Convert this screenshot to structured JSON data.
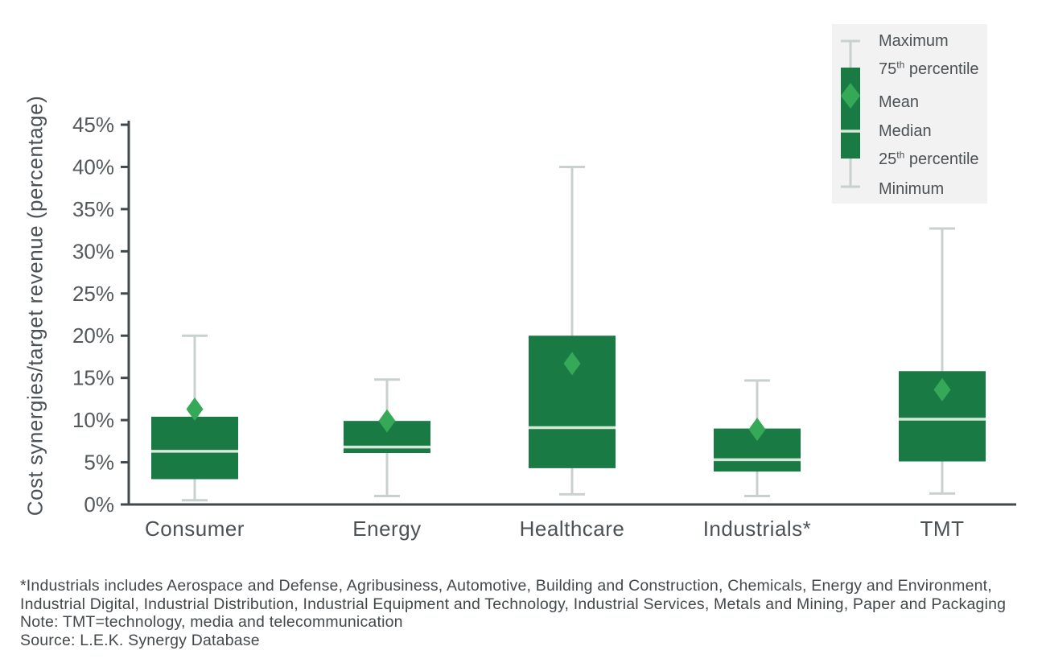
{
  "chart_data": {
    "type": "box",
    "title": "",
    "ylabel": "Cost synergies/target revenue (percentage)",
    "xlabel": "",
    "ylim": [
      0,
      45
    ],
    "ytick_step": 5,
    "ytick_suffix": "%",
    "grid": false,
    "legend_position": "top-right",
    "categories": [
      "Consumer",
      "Energy",
      "Healthcare",
      "Industrials*",
      "TMT"
    ],
    "series": [
      {
        "category": "Consumer",
        "minimum": 0.5,
        "p25": 3.0,
        "median": 6.3,
        "mean": 11.3,
        "p75": 10.4,
        "maximum": 20.0
      },
      {
        "category": "Energy",
        "minimum": 1.0,
        "p25": 6.1,
        "median": 6.8,
        "mean": 9.9,
        "p75": 9.9,
        "maximum": 14.8
      },
      {
        "category": "Healthcare",
        "minimum": 1.2,
        "p25": 4.3,
        "median": 9.1,
        "mean": 16.7,
        "p75": 20.0,
        "maximum": 40.0
      },
      {
        "category": "Industrials*",
        "minimum": 1.0,
        "p25": 3.9,
        "median": 5.3,
        "mean": 8.9,
        "p75": 9.0,
        "maximum": 14.7
      },
      {
        "category": "TMT",
        "minimum": 1.3,
        "p25": 5.1,
        "median": 10.1,
        "mean": 13.6,
        "p75": 15.8,
        "maximum": 32.7
      }
    ]
  },
  "legend": {
    "items": [
      {
        "text": "Maximum"
      },
      {
        "num": "75",
        "sup": "th",
        "text": " percentile"
      },
      {
        "text": "Mean"
      },
      {
        "text": "Median"
      },
      {
        "num": "25",
        "sup": "th",
        "text": " percentile"
      },
      {
        "text": "Minimum"
      }
    ]
  },
  "footnotes": [
    "*Industrials includes Aerospace and Defense, Agribusiness, Automotive, Building and Construction, Chemicals, Energy and Environment,",
    "Industrial Digital, Industrial Distribution, Industrial Equipment and Technology, Industrial Services, Metals and Mining, Paper and Packaging",
    "Note: TMT=technology, media and telecommunication",
    "Source: L.E.K. Synergy Database"
  ],
  "colors": {
    "background": "#ffffff",
    "box_fill": "#1a7a44",
    "mean_diamond": "#35a957",
    "median_line": "#d6e9d8",
    "whisker": "#c9d1cf",
    "axis": "#41494c",
    "tick_label": "#54595c",
    "category_label": "#4b5155",
    "footnote_text": "#43484b",
    "legend_bg": "#f1f2f1",
    "legend_text": "#4b5155"
  }
}
